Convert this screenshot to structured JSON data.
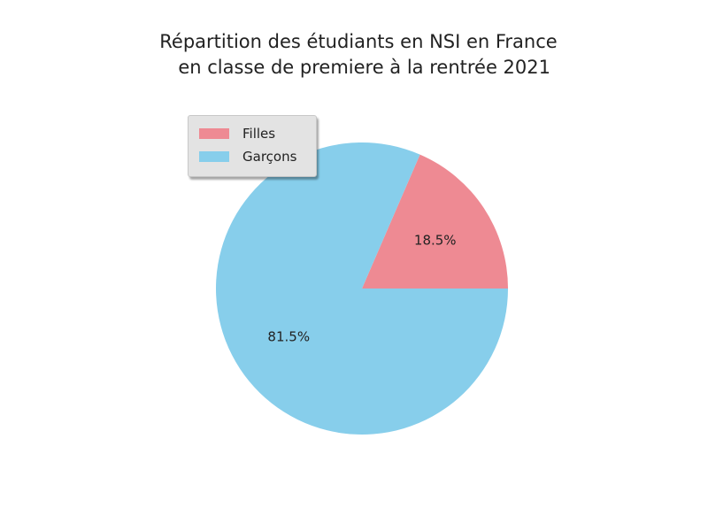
{
  "chart_data": {
    "type": "pie",
    "title": [
      "Répartition des étudiants en NSI en France",
      "  en classe de premiere à la rentrée 2021"
    ],
    "slices": [
      {
        "label": "Filles",
        "value": 18.5,
        "pct_label": "18.5%",
        "color": "#ee8a93"
      },
      {
        "label": "Garçons",
        "value": 81.5,
        "pct_label": "81.5%",
        "color": "#87ceeb"
      }
    ],
    "legend": {
      "placement": "upper-left"
    }
  }
}
